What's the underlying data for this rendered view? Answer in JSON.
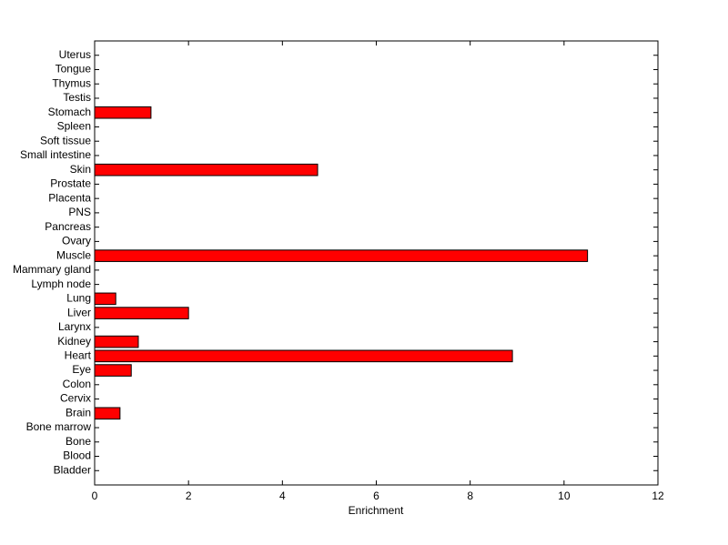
{
  "chart_data": {
    "type": "barh",
    "x_label": "Enrichment",
    "categories": [
      "Bladder",
      "Blood",
      "Bone",
      "Bone marrow",
      "Brain",
      "Cervix",
      "Colon",
      "Eye",
      "Heart",
      "Kidney",
      "Larynx",
      "Liver",
      "Lung",
      "Lymph node",
      "Mammary gland",
      "Muscle",
      "Ovary",
      "Pancreas",
      "PNS",
      "Placenta",
      "Prostate",
      "Skin",
      "Small intestine",
      "Soft tissue",
      "Spleen",
      "Stomach",
      "Testis",
      "Thymus",
      "Tongue",
      "Uterus"
    ],
    "values": [
      0,
      0,
      0,
      0,
      0.54,
      0,
      0,
      0.78,
      8.9,
      0.93,
      0,
      2.0,
      0.45,
      0,
      0,
      10.5,
      0,
      0,
      0,
      0,
      0,
      4.75,
      0,
      0,
      0,
      1.2,
      0,
      0,
      0,
      0
    ],
    "color": "#ff0000",
    "xlim": [
      0,
      12
    ],
    "xticks": [
      0,
      2,
      4,
      6,
      8,
      10,
      12
    ]
  }
}
